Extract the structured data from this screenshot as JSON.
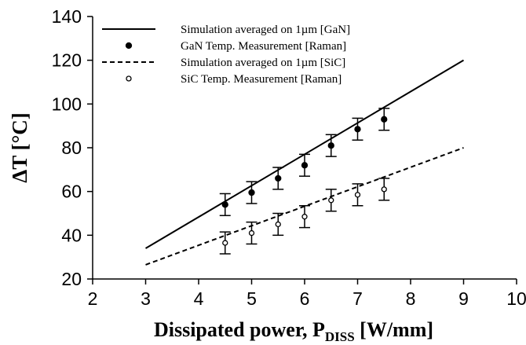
{
  "chart_data": {
    "type": "line",
    "title": "",
    "xlabel": {
      "main": "Dissipated power, P",
      "subscript": "DISS",
      "unit": " [W/mm]"
    },
    "ylabel": "ΔT [°C]",
    "xlim": [
      2,
      10
    ],
    "ylim": [
      20,
      140
    ],
    "xticks": [
      "2",
      "3",
      "4",
      "5",
      "6",
      "7",
      "8",
      "9",
      "10"
    ],
    "yticks": [
      "20",
      "40",
      "60",
      "80",
      "100",
      "120",
      "140"
    ],
    "grid": false,
    "legend_position": "top-left",
    "series": [
      {
        "name": "Simulation averaged on 1µm [GaN]",
        "kind": "line",
        "style": "solid",
        "x": [
          3,
          9
        ],
        "y": [
          34,
          120
        ]
      },
      {
        "name": "GaN Temp. Measurement [Raman]",
        "kind": "points",
        "marker": "filled",
        "x": [
          4.5,
          5,
          5.5,
          6,
          6.5,
          7,
          7.5
        ],
        "y": [
          54,
          59.5,
          66,
          72,
          81,
          88.5,
          93
        ],
        "error": [
          5,
          5,
          5,
          5,
          5,
          5,
          5
        ]
      },
      {
        "name": "Simulation averaged on 1µm [SiC]",
        "kind": "line",
        "style": "dashed",
        "x": [
          3,
          9
        ],
        "y": [
          26.5,
          80
        ]
      },
      {
        "name": "SiC Temp. Measurement [Raman]",
        "kind": "points",
        "marker": "open",
        "x": [
          4.5,
          5,
          5.5,
          6,
          6.5,
          7,
          7.5
        ],
        "y": [
          36.5,
          41,
          45,
          48.5,
          56,
          58.5,
          61
        ],
        "error": [
          5,
          5,
          5,
          5,
          5,
          5,
          5
        ]
      }
    ]
  }
}
